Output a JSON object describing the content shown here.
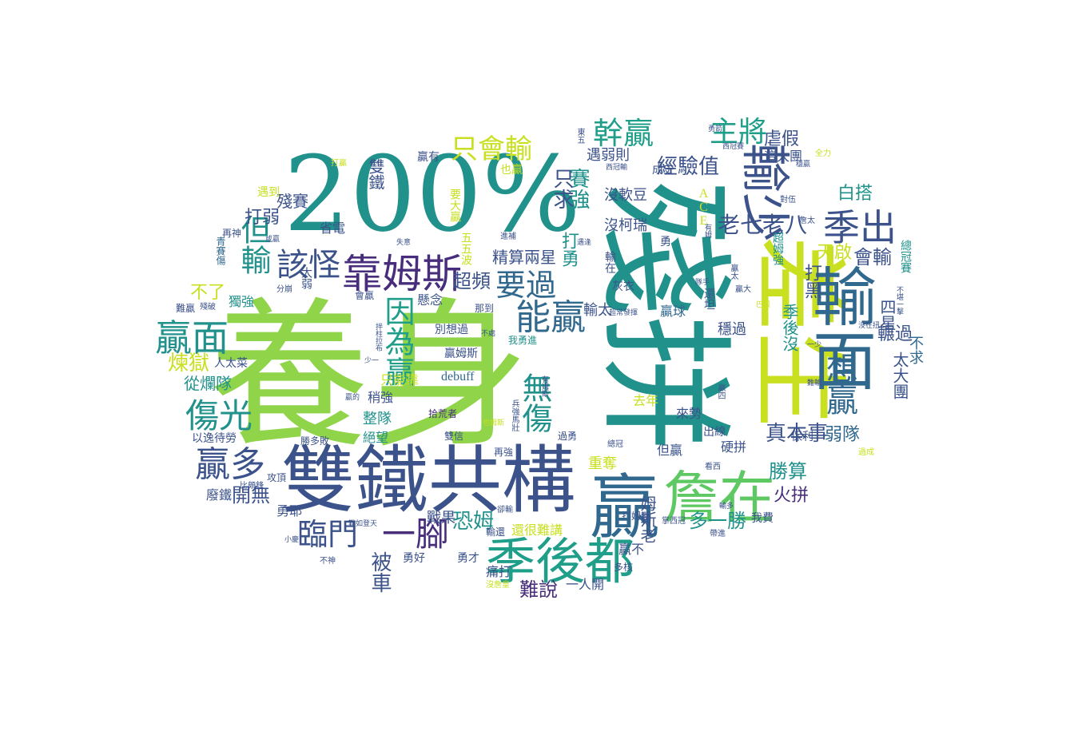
{
  "palette": {
    "lime": "#8fd449",
    "green": "#5ec962",
    "teal": "#21918c",
    "teal2": "#2a9d8f",
    "cyan": "#1f9e89",
    "blue": "#31688e",
    "indigo": "#3b528b",
    "purple": "#472d7b",
    "darkpurple": "#440154",
    "yellow": "#c8e020",
    "yellow2": "#b5de2b"
  },
  "words": [
    {
      "text": "養身"
    },
    {
      "text": "殘拼"
    },
    {
      "text": "200%"
    },
    {
      "text": "雙鐵共構"
    },
    {
      "text": "差生"
    },
    {
      "text": "輸面"
    },
    {
      "text": "贏"
    },
    {
      "text": "詹在"
    },
    {
      "text": "季後都"
    },
    {
      "text": "靠姆斯"
    },
    {
      "text": "輸少"
    },
    {
      "text": "季出"
    },
    {
      "text": "幹贏"
    },
    {
      "text": "主將"
    },
    {
      "text": "能贏"
    },
    {
      "text": "要過"
    },
    {
      "text": "該怪"
    },
    {
      "text": "贏面"
    },
    {
      "text": "傷光"
    },
    {
      "text": "贏多"
    },
    {
      "text": "臨門"
    },
    {
      "text": "一腳"
    },
    {
      "text": "但輸"
    },
    {
      "text": "因為贏"
    },
    {
      "text": "無傷"
    },
    {
      "text": "想贏"
    },
    {
      "text": "只會輸"
    },
    {
      "text": "經驗值"
    },
    {
      "text": "賽強"
    },
    {
      "text": "只求"
    },
    {
      "text": "虐假"
    },
    {
      "text": "這大團"
    },
    {
      "text": "白搭"
    },
    {
      "text": "老七老八"
    },
    {
      "text": "會輸"
    },
    {
      "text": "打黑"
    },
    {
      "text": "天啟"
    },
    {
      "text": "真本事"
    },
    {
      "text": "勝算"
    },
    {
      "text": "火拼"
    },
    {
      "text": "弱隊"
    },
    {
      "text": "多一勝"
    },
    {
      "text": "恐姆"
    },
    {
      "text": "被車"
    },
    {
      "text": "難說"
    },
    {
      "text": "戰果"
    },
    {
      "text": "開無"
    },
    {
      "text": "煉獄"
    },
    {
      "text": "從爛隊"
    },
    {
      "text": "不了"
    },
    {
      "text": "打弱"
    },
    {
      "text": "殘賽"
    },
    {
      "text": "省電"
    },
    {
      "text": "超頻"
    },
    {
      "text": "精算兩星"
    },
    {
      "text": "打勇"
    },
    {
      "text": "要大贏"
    },
    {
      "text": "遇弱則"
    },
    {
      "text": "沒軟豆"
    },
    {
      "text": "沒柯瑞"
    },
    {
      "text": "成史"
    },
    {
      "text": "ACE"
    },
    {
      "text": "輸太"
    },
    {
      "text": "贏球"
    },
    {
      "text": "四星"
    },
    {
      "text": "輾過"
    },
    {
      "text": "不求"
    },
    {
      "text": "太大團"
    },
    {
      "text": "季後沒"
    },
    {
      "text": "穩過"
    },
    {
      "text": "姆斯老"
    },
    {
      "text": "贏不"
    },
    {
      "text": "硬拼"
    },
    {
      "text": "但贏"
    },
    {
      "text": "來勢"
    },
    {
      "text": "去年"
    },
    {
      "text": "重奪"
    },
    {
      "text": "懸念"
    },
    {
      "text": "別想過"
    },
    {
      "text": "贏姆斯"
    },
    {
      "text": "debuff"
    },
    {
      "text": "只能靠"
    },
    {
      "text": "稍強"
    },
    {
      "text": "整隊"
    },
    {
      "text": "絕望"
    },
    {
      "text": "拾荒者"
    },
    {
      "text": "以逸待勞"
    },
    {
      "text": "人太菜"
    },
    {
      "text": "獨強"
    },
    {
      "text": "太弱"
    },
    {
      "text": "遇到"
    },
    {
      "text": "雙鐵"
    },
    {
      "text": "五五波"
    },
    {
      "text": "勇耶"
    },
    {
      "text": "勇好"
    },
    {
      "text": "勇才"
    },
    {
      "text": "痛打"
    },
    {
      "text": "一人開"
    },
    {
      "text": "多核"
    },
    {
      "text": "我費"
    },
    {
      "text": "保利"
    },
    {
      "text": "出線"
    },
    {
      "text": "廢鐵"
    },
    {
      "text": "攻頂"
    },
    {
      "text": "比頗鋒"
    },
    {
      "text": "勝多敗"
    },
    {
      "text": "雙信"
    },
    {
      "text": "再強"
    },
    {
      "text": "過勇"
    },
    {
      "text": "贏有"
    },
    {
      "text": "也贏"
    },
    {
      "text": "勇"
    },
    {
      "text": "灰衣"
    },
    {
      "text": "會贏"
    },
    {
      "text": "那到"
    },
    {
      "text": "再神"
    },
    {
      "text": "難贏"
    },
    {
      "text": "殘破"
    },
    {
      "text": "青賽傷"
    },
    {
      "text": "分崩"
    },
    {
      "text": "不神"
    },
    {
      "text": "小慶"
    },
    {
      "text": "輸還"
    },
    {
      "text": "還很難講"
    },
    {
      "text": "進補"
    },
    {
      "text": "有姆"
    },
    {
      "text": "全力"
    },
    {
      "text": "對伍"
    },
    {
      "text": "穩贏"
    },
    {
      "text": "勇箭"
    },
    {
      "text": "西冠賽"
    },
    {
      "text": "東五"
    },
    {
      "text": "詹太"
    },
    {
      "text": "贏太"
    },
    {
      "text": "超姆強"
    },
    {
      "text": "巴殼"
    },
    {
      "text": "沒在扭"
    },
    {
      "text": "不堪一擊"
    },
    {
      "text": "總冠賽"
    },
    {
      "text": "看西"
    },
    {
      "text": "過成"
    },
    {
      "text": "帶進"
    },
    {
      "text": "掌西冠"
    },
    {
      "text": "難輸"
    },
    {
      "text": "贏四"
    },
    {
      "text": "總冠"
    },
    {
      "text": "打姆斯"
    },
    {
      "text": "輸多"
    },
    {
      "text": "難如登天"
    },
    {
      "text": "卻輸"
    },
    {
      "text": "失意"
    },
    {
      "text": "遇逢"
    },
    {
      "text": "或贏"
    },
    {
      "text": "打贏"
    },
    {
      "text": "一少"
    },
    {
      "text": "少一"
    },
    {
      "text": "贏的"
    },
    {
      "text": "兵強馬壯"
    },
    {
      "text": "有姆斯"
    },
    {
      "text": "也姆斯"
    },
    {
      "text": "拌柱拉布"
    },
    {
      "text": "不處"
    },
    {
      "text": "我勇進"
    },
    {
      "text": "輸在"
    },
    {
      "text": "西冠輸"
    },
    {
      "text": "沒詹皇"
    },
    {
      "text": "贏大"
    },
    {
      "text": "還坦"
    },
    {
      "text": "隊手"
    },
    {
      "text": "超常發揮"
    }
  ]
}
